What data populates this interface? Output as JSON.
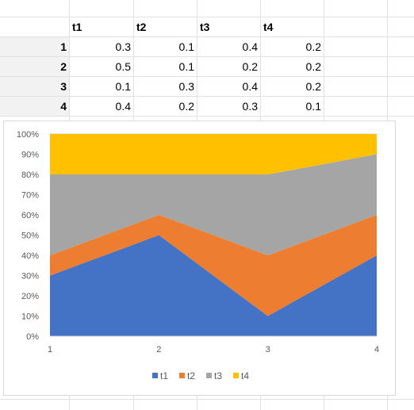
{
  "sheet": {
    "column_headers": [
      "t1",
      "t2",
      "t3",
      "t4"
    ],
    "rows": [
      {
        "label": "1",
        "values": [
          "0.3",
          "0.1",
          "0.4",
          "0.2"
        ]
      },
      {
        "label": "2",
        "values": [
          "0.5",
          "0.1",
          "0.2",
          "0.2"
        ]
      },
      {
        "label": "3",
        "values": [
          "0.1",
          "0.3",
          "0.4",
          "0.2"
        ]
      },
      {
        "label": "4",
        "values": [
          "0.4",
          "0.2",
          "0.3",
          "0.1"
        ]
      }
    ]
  },
  "chart_data": {
    "type": "area",
    "stacking": "percent",
    "categories": [
      "1",
      "2",
      "3",
      "4"
    ],
    "series": [
      {
        "name": "t1",
        "values": [
          0.3,
          0.5,
          0.1,
          0.4
        ],
        "color": "#4472c4"
      },
      {
        "name": "t2",
        "values": [
          0.1,
          0.1,
          0.3,
          0.2
        ],
        "color": "#ed7d31"
      },
      {
        "name": "t3",
        "values": [
          0.4,
          0.2,
          0.4,
          0.3
        ],
        "color": "#a5a5a5"
      },
      {
        "name": "t4",
        "values": [
          0.2,
          0.2,
          0.2,
          0.1
        ],
        "color": "#ffc000"
      }
    ],
    "y_ticks": [
      "0%",
      "10%",
      "20%",
      "30%",
      "40%",
      "50%",
      "60%",
      "70%",
      "80%",
      "90%",
      "100%"
    ],
    "ylim": [
      0,
      1
    ],
    "grid": true,
    "legend_position": "bottom"
  }
}
